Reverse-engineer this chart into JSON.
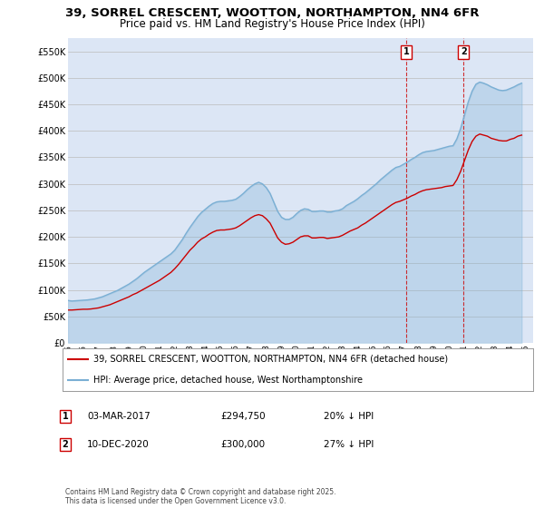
{
  "title": "39, SORREL CRESCENT, WOOTTON, NORTHAMPTON, NN4 6FR",
  "subtitle": "Price paid vs. HM Land Registry's House Price Index (HPI)",
  "title_fontsize": 9.5,
  "subtitle_fontsize": 8.5,
  "ylabel_ticks": [
    "£0",
    "£50K",
    "£100K",
    "£150K",
    "£200K",
    "£250K",
    "£300K",
    "£350K",
    "£400K",
    "£450K",
    "£500K",
    "£550K"
  ],
  "ytick_values": [
    0,
    50000,
    100000,
    150000,
    200000,
    250000,
    300000,
    350000,
    400000,
    450000,
    500000,
    550000
  ],
  "ylim": [
    0,
    575000
  ],
  "xlim_start": 1995.0,
  "xlim_end": 2025.5,
  "xtick_years": [
    1995,
    1996,
    1997,
    1998,
    1999,
    2000,
    2001,
    2002,
    2003,
    2004,
    2005,
    2006,
    2007,
    2008,
    2009,
    2010,
    2011,
    2012,
    2013,
    2014,
    2015,
    2016,
    2017,
    2018,
    2019,
    2020,
    2021,
    2022,
    2023,
    2024,
    2025
  ],
  "plot_bg_color": "#dce6f5",
  "red_line_color": "#cc0000",
  "blue_line_color": "#7aafd4",
  "vline_color": "#cc0000",
  "marker1_x": 2017.17,
  "marker2_x": 2020.94,
  "marker1_label": "1",
  "marker2_label": "2",
  "legend_line1": "39, SORREL CRESCENT, WOOTTON, NORTHAMPTON, NN4 6FR (detached house)",
  "legend_line2": "HPI: Average price, detached house, West Northamptonshire",
  "footer": "Contains HM Land Registry data © Crown copyright and database right 2025.\nThis data is licensed under the Open Government Licence v3.0.",
  "hpi_years": [
    1995.0,
    1995.25,
    1995.5,
    1995.75,
    1996.0,
    1996.25,
    1996.5,
    1996.75,
    1997.0,
    1997.25,
    1997.5,
    1997.75,
    1998.0,
    1998.25,
    1998.5,
    1998.75,
    1999.0,
    1999.25,
    1999.5,
    1999.75,
    2000.0,
    2000.25,
    2000.5,
    2000.75,
    2001.0,
    2001.25,
    2001.5,
    2001.75,
    2002.0,
    2002.25,
    2002.5,
    2002.75,
    2003.0,
    2003.25,
    2003.5,
    2003.75,
    2004.0,
    2004.25,
    2004.5,
    2004.75,
    2005.0,
    2005.25,
    2005.5,
    2005.75,
    2006.0,
    2006.25,
    2006.5,
    2006.75,
    2007.0,
    2007.25,
    2007.5,
    2007.75,
    2008.0,
    2008.25,
    2008.5,
    2008.75,
    2009.0,
    2009.25,
    2009.5,
    2009.75,
    2010.0,
    2010.25,
    2010.5,
    2010.75,
    2011.0,
    2011.25,
    2011.5,
    2011.75,
    2012.0,
    2012.25,
    2012.5,
    2012.75,
    2013.0,
    2013.25,
    2013.5,
    2013.75,
    2014.0,
    2014.25,
    2014.5,
    2014.75,
    2015.0,
    2015.25,
    2015.5,
    2015.75,
    2016.0,
    2016.25,
    2016.5,
    2016.75,
    2017.0,
    2017.25,
    2017.5,
    2017.75,
    2018.0,
    2018.25,
    2018.5,
    2018.75,
    2019.0,
    2019.25,
    2019.5,
    2019.75,
    2020.0,
    2020.25,
    2020.5,
    2020.75,
    2021.0,
    2021.25,
    2021.5,
    2021.75,
    2022.0,
    2022.25,
    2022.5,
    2022.75,
    2023.0,
    2023.25,
    2023.5,
    2023.75,
    2024.0,
    2024.25,
    2024.5,
    2024.75
  ],
  "hpi_values": [
    80000,
    79000,
    79500,
    80000,
    80500,
    81000,
    82000,
    83000,
    85000,
    87000,
    90000,
    93000,
    96000,
    99000,
    103000,
    107000,
    111000,
    116000,
    121000,
    127000,
    133000,
    138000,
    143000,
    148000,
    153000,
    158000,
    163000,
    168000,
    175000,
    185000,
    195000,
    207000,
    218000,
    228000,
    238000,
    246000,
    252000,
    258000,
    263000,
    266000,
    267000,
    267000,
    268000,
    269000,
    271000,
    276000,
    282000,
    289000,
    295000,
    300000,
    303000,
    300000,
    293000,
    282000,
    265000,
    248000,
    237000,
    233000,
    233000,
    237000,
    244000,
    250000,
    253000,
    252000,
    248000,
    248000,
    249000,
    249000,
    247000,
    247000,
    249000,
    250000,
    253000,
    259000,
    263000,
    267000,
    272000,
    278000,
    283000,
    289000,
    295000,
    301000,
    308000,
    314000,
    320000,
    326000,
    331000,
    333000,
    337000,
    341000,
    346000,
    350000,
    355000,
    359000,
    361000,
    362000,
    363000,
    365000,
    367000,
    369000,
    371000,
    372000,
    385000,
    405000,
    430000,
    455000,
    475000,
    488000,
    492000,
    490000,
    487000,
    483000,
    480000,
    477000,
    476000,
    477000,
    480000,
    483000,
    487000,
    490000
  ],
  "red_years": [
    1995.0,
    1995.25,
    1995.5,
    1995.75,
    1996.0,
    1996.25,
    1996.5,
    1996.75,
    1997.0,
    1997.25,
    1997.5,
    1997.75,
    1998.0,
    1998.25,
    1998.5,
    1998.75,
    1999.0,
    1999.25,
    1999.5,
    1999.75,
    2000.0,
    2000.25,
    2000.5,
    2000.75,
    2001.0,
    2001.25,
    2001.5,
    2001.75,
    2002.0,
    2002.25,
    2002.5,
    2002.75,
    2003.0,
    2003.25,
    2003.5,
    2003.75,
    2004.0,
    2004.25,
    2004.5,
    2004.75,
    2005.0,
    2005.25,
    2005.5,
    2005.75,
    2006.0,
    2006.25,
    2006.5,
    2006.75,
    2007.0,
    2007.25,
    2007.5,
    2007.75,
    2008.0,
    2008.25,
    2008.5,
    2008.75,
    2009.0,
    2009.25,
    2009.5,
    2009.75,
    2010.0,
    2010.25,
    2010.5,
    2010.75,
    2011.0,
    2011.25,
    2011.5,
    2011.75,
    2012.0,
    2012.25,
    2012.5,
    2012.75,
    2013.0,
    2013.25,
    2013.5,
    2013.75,
    2014.0,
    2014.25,
    2014.5,
    2014.75,
    2015.0,
    2015.25,
    2015.5,
    2015.75,
    2016.0,
    2016.25,
    2016.5,
    2016.75,
    2017.0,
    2017.25,
    2017.5,
    2017.75,
    2018.0,
    2018.25,
    2018.5,
    2018.75,
    2019.0,
    2019.25,
    2019.5,
    2019.75,
    2020.0,
    2020.25,
    2020.5,
    2020.75,
    2021.0,
    2021.25,
    2021.5,
    2021.75,
    2022.0,
    2022.25,
    2022.5,
    2022.75,
    2023.0,
    2023.25,
    2023.5,
    2023.75,
    2024.0,
    2024.25,
    2024.5,
    2024.75
  ],
  "red_values": [
    62000,
    62000,
    62500,
    63000,
    63500,
    63500,
    64000,
    65000,
    66000,
    68000,
    70000,
    72000,
    75000,
    78000,
    81000,
    84000,
    87000,
    91000,
    94000,
    98000,
    102000,
    106000,
    110000,
    114000,
    118000,
    123000,
    128000,
    133000,
    140000,
    148000,
    157000,
    166000,
    175000,
    182000,
    190000,
    196000,
    200000,
    205000,
    209000,
    212000,
    213000,
    213000,
    214000,
    215000,
    217000,
    221000,
    226000,
    231000,
    236000,
    240000,
    242000,
    240000,
    234000,
    226000,
    212000,
    198000,
    190000,
    186000,
    187000,
    190000,
    195000,
    200000,
    202000,
    202000,
    198000,
    198000,
    199000,
    199000,
    197000,
    198000,
    199000,
    200000,
    203000,
    207000,
    211000,
    214000,
    217000,
    222000,
    226000,
    231000,
    236000,
    241000,
    246000,
    251000,
    256000,
    261000,
    265000,
    267000,
    270000,
    273000,
    277000,
    280000,
    284000,
    287000,
    289000,
    290000,
    291000,
    292000,
    293000,
    295000,
    296000,
    297000,
    308000,
    324000,
    344000,
    364000,
    380000,
    390000,
    394000,
    392000,
    390000,
    386000,
    384000,
    382000,
    381000,
    381000,
    384000,
    386000,
    390000,
    392000
  ]
}
